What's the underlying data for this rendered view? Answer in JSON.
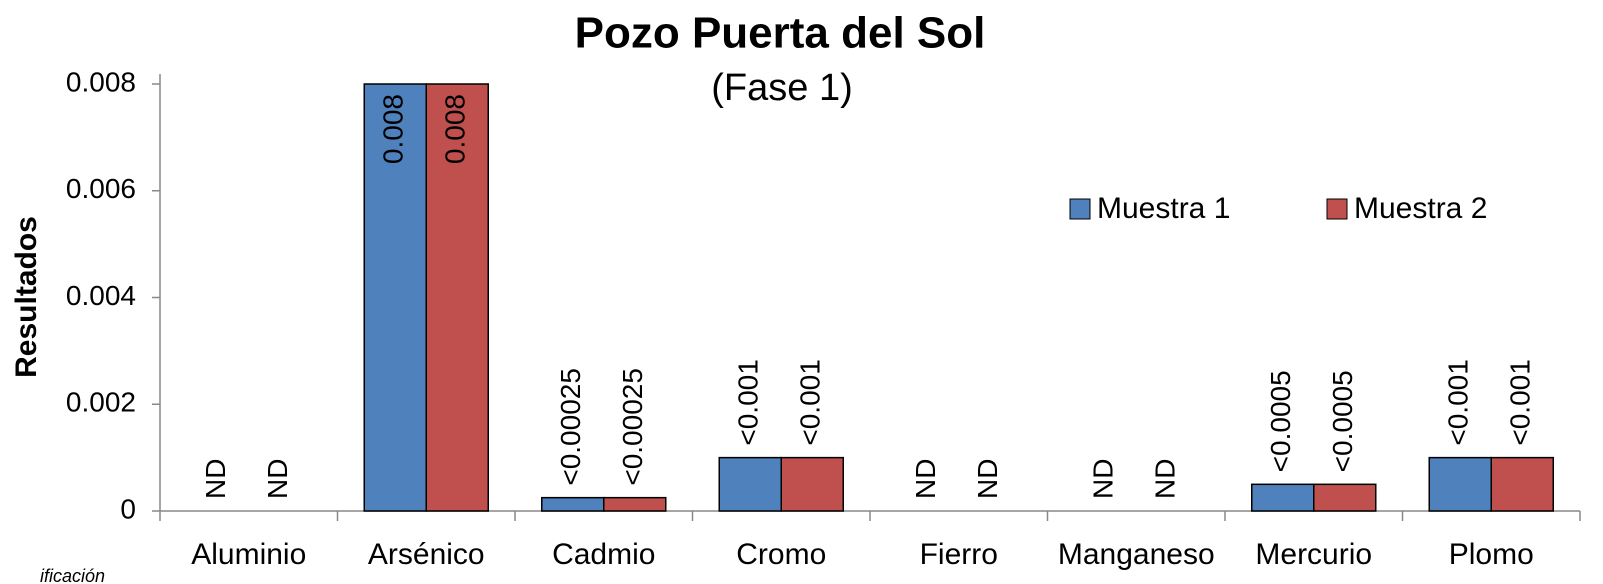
{
  "chart_data": {
    "type": "bar",
    "title": "Pozo Puerta del Sol",
    "subtitle": "(Fase 1)",
    "y_label": "Resultados",
    "footnote": "ificación",
    "categories": [
      "Aluminio",
      "Arsénico",
      "Cadmio",
      "Cromo",
      "Fierro",
      "Manganeso",
      "Mercurio",
      "Plomo"
    ],
    "series": [
      {
        "name": "Muestra 1",
        "color": "#4f81bd",
        "values": [
          null,
          0.008,
          0.00025,
          0.001,
          null,
          null,
          0.0005,
          0.001
        ],
        "value_labels": [
          "ND",
          "0.008",
          "<0.00025",
          "<0.001",
          "ND",
          "ND",
          "<0.0005",
          "<0.001"
        ]
      },
      {
        "name": "Muestra 2",
        "color": "#c0504d",
        "values": [
          null,
          0.008,
          0.00025,
          0.001,
          null,
          null,
          0.0005,
          0.001
        ],
        "value_labels": [
          "ND",
          "0.008",
          "<0.00025",
          "<0.001",
          "ND",
          "ND",
          "<0.0005",
          "<0.001"
        ]
      }
    ],
    "ylim": [
      0,
      0.008
    ],
    "yticks": [
      0,
      0.002,
      0.004,
      0.006,
      0.008
    ],
    "grid": false,
    "legend": "upper right"
  }
}
